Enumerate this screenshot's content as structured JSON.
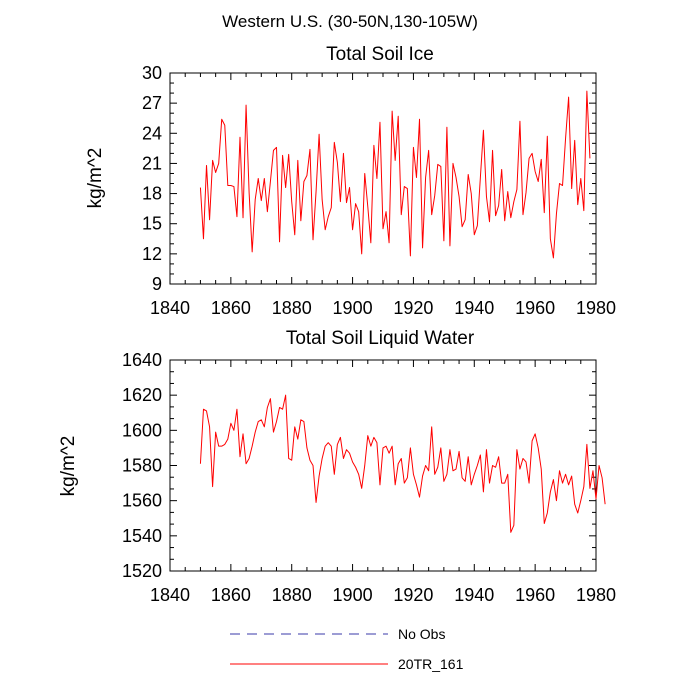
{
  "figure_title": "Western U.S. (30-50N,130-105W)",
  "legend": {
    "items": [
      {
        "label": "No Obs",
        "color": "#3a3aa8",
        "style": "dashed"
      },
      {
        "label": "20TR_161",
        "color": "#ff0000",
        "style": "solid"
      }
    ]
  },
  "chart_data": [
    {
      "type": "line",
      "title": "Total Soil Ice",
      "xlabel": "",
      "ylabel": "kg/m^2",
      "xlim": [
        1840,
        1980
      ],
      "ylim": [
        9,
        30
      ],
      "xticks": [
        1840,
        1860,
        1880,
        1900,
        1920,
        1940,
        1960,
        1980
      ],
      "yticks": [
        9,
        12,
        15,
        18,
        21,
        24,
        27,
        30
      ],
      "series": [
        {
          "name": "20TR_161",
          "color": "#ff0000",
          "x_start": 1850,
          "x_step": 1,
          "values": [
            18.6,
            13.5,
            20.8,
            15.4,
            21.3,
            20.1,
            21.0,
            25.4,
            24.8,
            18.8,
            18.8,
            18.7,
            15.7,
            23.6,
            15.6,
            26.8,
            18.1,
            12.2,
            17.4,
            19.5,
            17.3,
            19.5,
            16.2,
            19.2,
            22.3,
            22.6,
            13.2,
            21.8,
            18.6,
            21.9,
            17.2,
            13.9,
            21.3,
            15.3,
            19.2,
            19.8,
            22.4,
            13.4,
            18.2,
            23.9,
            17.4,
            14.4,
            15.7,
            16.6,
            23.1,
            21.1,
            17.2,
            22.0,
            17.1,
            18.6,
            14.4,
            17.0,
            16.2,
            12.0,
            20.0,
            16.7,
            13.1,
            22.8,
            19.5,
            25.1,
            14.5,
            16.2,
            13.1,
            26.2,
            21.3,
            25.7,
            15.9,
            18.7,
            18.5,
            11.8,
            22.6,
            19.6,
            25.4,
            12.6,
            19.6,
            22.3,
            15.9,
            17.8,
            20.9,
            20.7,
            13.3,
            24.6,
            12.8,
            21.0,
            19.6,
            17.7,
            14.7,
            15.4,
            19.9,
            18.0,
            13.9,
            14.8,
            19.6,
            24.3,
            17.7,
            15.2,
            22.3,
            15.8,
            16.8,
            20.4,
            15.3,
            18.2,
            15.6,
            17.2,
            18.4,
            25.2,
            15.9,
            18.1,
            21.5,
            22.0,
            20.2,
            19.2,
            21.4,
            16.1,
            23.7,
            13.5,
            11.6,
            16.0,
            19.0,
            18.8,
            23.5,
            27.6,
            18.5,
            23.3,
            16.9,
            19.5,
            16.3,
            28.2,
            21.5
          ]
        },
        {
          "name": "No Obs",
          "color": "#3a3aa8",
          "values": []
        }
      ]
    },
    {
      "type": "line",
      "title": "Total Soil Liquid Water",
      "xlabel": "",
      "ylabel": "kg/m^2",
      "xlim": [
        1840,
        1980
      ],
      "ylim": [
        1520,
        1640
      ],
      "xticks": [
        1840,
        1860,
        1880,
        1900,
        1920,
        1940,
        1960,
        1980
      ],
      "yticks": [
        1520,
        1540,
        1560,
        1580,
        1600,
        1620,
        1640
      ],
      "series": [
        {
          "name": "20TR_161",
          "color": "#ff0000",
          "x_start": 1850,
          "x_step": 1,
          "values": [
            1581,
            1612,
            1611,
            1602,
            1568,
            1599,
            1591,
            1591,
            1592,
            1595,
            1604,
            1600,
            1612,
            1585,
            1598,
            1581,
            1584,
            1591,
            1599,
            1605,
            1606,
            1602,
            1613,
            1618,
            1599,
            1605,
            1613,
            1612,
            1620,
            1584,
            1583,
            1602,
            1595,
            1606,
            1605,
            1590,
            1583,
            1580,
            1559,
            1574,
            1584,
            1591,
            1593,
            1591,
            1575,
            1592,
            1596,
            1584,
            1589,
            1587,
            1582,
            1579,
            1575,
            1567,
            1580,
            1597,
            1591,
            1596,
            1593,
            1569,
            1590,
            1591,
            1587,
            1591,
            1569,
            1581,
            1584,
            1570,
            1573,
            1590,
            1575,
            1569,
            1562,
            1574,
            1580,
            1577,
            1602,
            1575,
            1579,
            1590,
            1571,
            1575,
            1589,
            1577,
            1578,
            1588,
            1573,
            1571,
            1585,
            1569,
            1575,
            1580,
            1586,
            1565,
            1589,
            1570,
            1580,
            1579,
            1585,
            1570,
            1570,
            1575,
            1542,
            1546,
            1589,
            1578,
            1584,
            1582,
            1570,
            1594,
            1598,
            1590,
            1578,
            1547,
            1553,
            1565,
            1572,
            1560,
            1577,
            1570,
            1575,
            1569,
            1574,
            1558,
            1553,
            1560,
            1568,
            1592,
            1567,
            1577,
            1561,
            1580,
            1573,
            1558
          ]
        },
        {
          "name": "No Obs",
          "color": "#3a3aa8",
          "values": []
        }
      ]
    }
  ]
}
